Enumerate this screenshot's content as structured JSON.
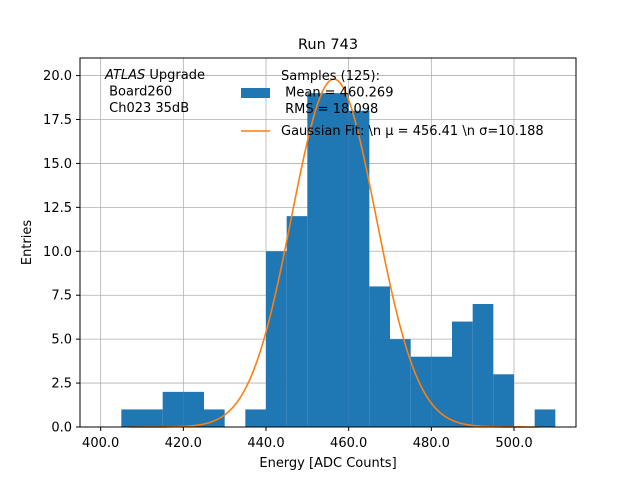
{
  "chart_data": {
    "type": "histogram",
    "title": "Run 743",
    "xlabel": "Energy [ADC Counts]",
    "ylabel": "Entries",
    "xlim": [
      395,
      515
    ],
    "ylim": [
      0,
      21
    ],
    "xticks": [
      400,
      420,
      440,
      460,
      480,
      500
    ],
    "xtick_labels": [
      "400.0",
      "420.0",
      "440.0",
      "460.0",
      "480.0",
      "500.0"
    ],
    "yticks": [
      0,
      2.5,
      5,
      7.5,
      10,
      12.5,
      15,
      17.5,
      20
    ],
    "ytick_labels": [
      "0.0",
      "2.5",
      "5.0",
      "7.5",
      "10.0",
      "12.5",
      "15.0",
      "17.5",
      "20.0"
    ],
    "grid": true,
    "bins": [
      {
        "x0": 405,
        "x1": 410,
        "count": 1
      },
      {
        "x0": 410,
        "x1": 415,
        "count": 1
      },
      {
        "x0": 415,
        "x1": 420,
        "count": 2
      },
      {
        "x0": 420,
        "x1": 425,
        "count": 2
      },
      {
        "x0": 425,
        "x1": 430,
        "count": 1
      },
      {
        "x0": 430,
        "x1": 435,
        "count": 0
      },
      {
        "x0": 435,
        "x1": 440,
        "count": 1
      },
      {
        "x0": 440,
        "x1": 445,
        "count": 10
      },
      {
        "x0": 445,
        "x1": 450,
        "count": 12
      },
      {
        "x0": 450,
        "x1": 455,
        "count": 19
      },
      {
        "x0": 455,
        "x1": 460,
        "count": 19
      },
      {
        "x0": 460,
        "x1": 465,
        "count": 18
      },
      {
        "x0": 465,
        "x1": 470,
        "count": 8
      },
      {
        "x0": 470,
        "x1": 475,
        "count": 5
      },
      {
        "x0": 475,
        "x1": 480,
        "count": 4
      },
      {
        "x0": 480,
        "x1": 485,
        "count": 4
      },
      {
        "x0": 485,
        "x1": 490,
        "count": 6
      },
      {
        "x0": 490,
        "x1": 495,
        "count": 7
      },
      {
        "x0": 495,
        "x1": 500,
        "count": 3
      },
      {
        "x0": 500,
        "x1": 505,
        "count": 0
      },
      {
        "x0": 505,
        "x1": 510,
        "count": 1
      }
    ],
    "fit": {
      "type": "gaussian",
      "mu": 456.41,
      "sigma": 10.188,
      "amplitude": 19.8,
      "x_range": [
        407,
        506
      ]
    },
    "colors": {
      "bars": "#1f77b4",
      "fit": "#ff7f0e",
      "grid": "#b0b0b0",
      "axes": "#000000"
    },
    "legend": {
      "placement": "top-center",
      "entries": [
        {
          "series": "bars",
          "lines": [
            "Samples (125):",
            " Mean = 460.269",
            " RMS = 18.098"
          ]
        },
        {
          "series": "fit",
          "lines": [
            "Gaussian Fit: \\n μ = 456.41 \\n σ=10.188"
          ]
        }
      ]
    },
    "annotation": {
      "lines": [
        "ATLAS Upgrade",
        " Board260",
        " Ch023 35dB"
      ]
    }
  }
}
